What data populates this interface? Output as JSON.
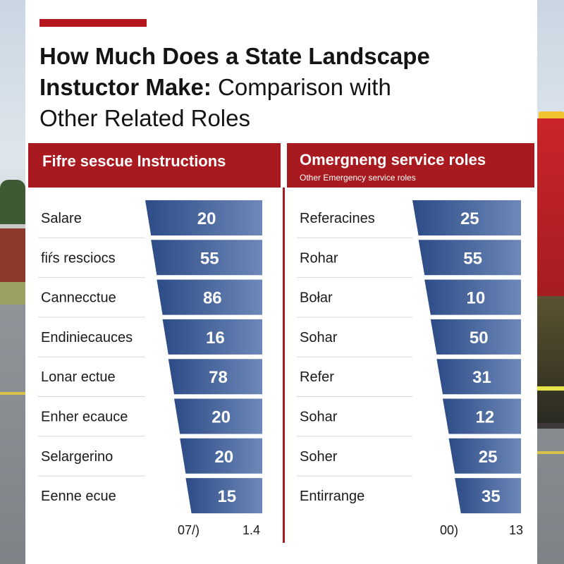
{
  "title": {
    "line1": "How Much Does a State Landscape",
    "line2_bold": "Instuctor Make:",
    "line2_rest": " Comparison with",
    "line3": "Other Related Roles"
  },
  "colors": {
    "accent": "#a81a1f",
    "bar_dark": "#2d4c87",
    "bar_light": "#6d88b8"
  },
  "chart_data": [
    {
      "type": "bar",
      "title": "Fifre sescue Instructions",
      "categories": [
        "Salare",
        "fiŕs resciocs",
        "Cannecctue",
        "Endiniecauces",
        "Lonar ectue",
        "Enher ecauce",
        "Selargerino",
        "Eenne ecue"
      ],
      "values": [
        20,
        55,
        86,
        16,
        78,
        20,
        20,
        15
      ],
      "footer": [
        "07/)",
        "1.4"
      ]
    },
    {
      "type": "bar",
      "title": "Omergneng service roles",
      "subtitle": "Other Emergency service roles",
      "categories": [
        "Referacines",
        "Rohar",
        "Bołar",
        "Sohar",
        "Refer",
        "Sohar",
        "Soher",
        "Entirrange"
      ],
      "values": [
        25,
        55,
        10,
        50,
        31,
        12,
        25,
        35
      ],
      "footer": [
        "00)",
        "13"
      ]
    }
  ]
}
